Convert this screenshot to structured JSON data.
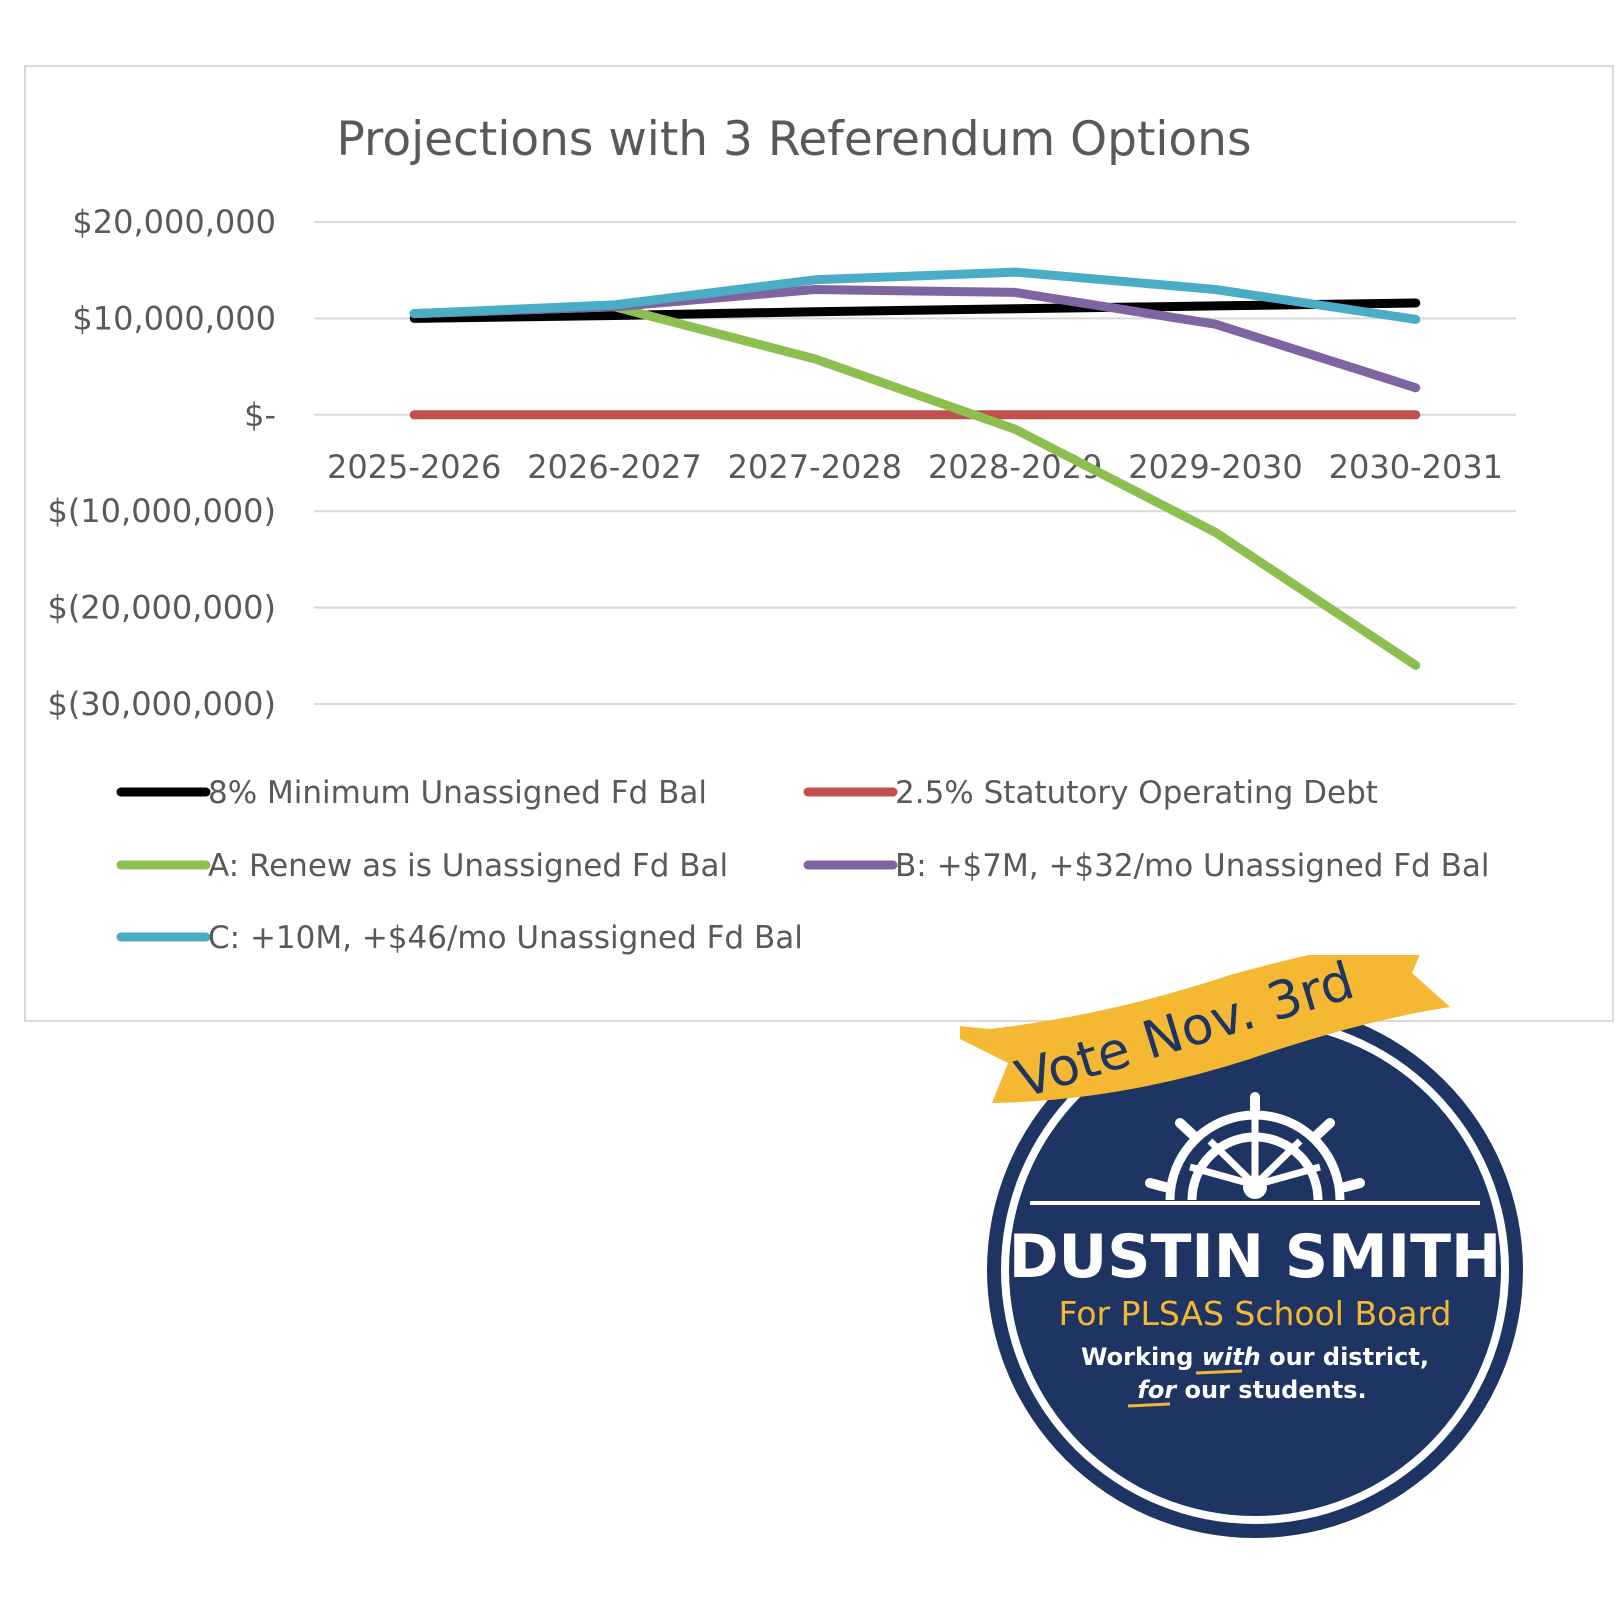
{
  "chart_data": {
    "type": "line",
    "title": "Projections with 3 Referendum Options",
    "categories": [
      "2025-2026",
      "2026-2027",
      "2027-2028",
      "2028-2029",
      "2029-2030",
      "2030-2031"
    ],
    "y_ticks": [
      {
        "value": 20000000,
        "label": "$20,000,000"
      },
      {
        "value": 10000000,
        "label": "$10,000,000"
      },
      {
        "value": 0,
        "label": "$-"
      },
      {
        "value": -10000000,
        "label": "$(10,000,000)"
      },
      {
        "value": -20000000,
        "label": "$(20,000,000)"
      },
      {
        "value": -30000000,
        "label": "$(30,000,000)"
      }
    ],
    "ylim": [
      -30000000,
      20000000
    ],
    "grid": true,
    "legend_position": "bottom",
    "series": [
      {
        "name": "8% Minimum Unassigned Fd Bal",
        "color": "#000000",
        "values": [
          10000000,
          10300000,
          10700000,
          11000000,
          11300000,
          11600000
        ]
      },
      {
        "name": "2.5% Statutory Operating Debt",
        "color": "#c0504d",
        "values": [
          0,
          0,
          0,
          0,
          0,
          0
        ]
      },
      {
        "name": "A: Renew as is Unassigned Fd Bal",
        "color": "#8cbf4f",
        "values": [
          10500000,
          11200000,
          5800000,
          -1500000,
          -12200000,
          -26000000
        ]
      },
      {
        "name": "B: +$7M, +$32/mo Unassigned Fd Bal",
        "color": "#8064a2",
        "values": [
          10500000,
          11200000,
          13000000,
          12700000,
          9400000,
          2800000
        ]
      },
      {
        "name": "C: +10M, +$46/mo Unassigned Fd Bal",
        "color": "#4bacc6",
        "values": [
          10500000,
          11400000,
          14000000,
          14800000,
          13000000,
          9900000
        ]
      }
    ]
  },
  "badge": {
    "banner_text": "Vote Nov. 3rd",
    "name": "DUSTIN SMITH",
    "subtitle": "For PLSAS School Board",
    "tagline_line1": [
      "Working ",
      "with",
      " our district,"
    ],
    "tagline_line2": [
      "for",
      " our students."
    ],
    "icon": "ship-wheel-icon",
    "colors": {
      "navy": "#1e3462",
      "gold": "#f4b833",
      "white": "#ffffff"
    }
  }
}
